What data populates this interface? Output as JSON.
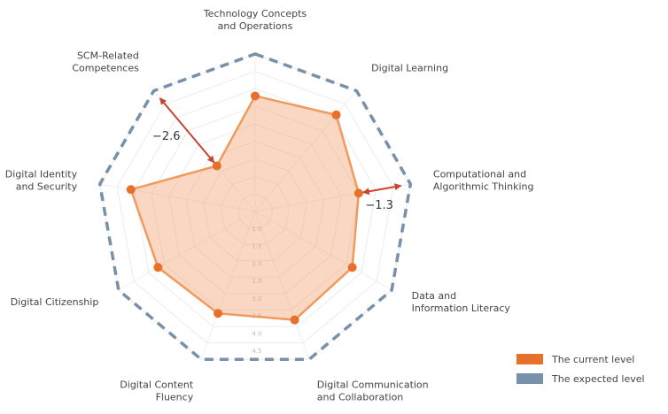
{
  "chart_data": {
    "type": "radar",
    "categories": [
      "Technology Concepts\nand Operations",
      "Digital Learning",
      "Computational and\nAlgorithmic Thinking",
      "Data and\nInformation Literacy",
      "Digital Communication\nand Collaboration",
      "Digital Content\nFluency",
      "Digital Citizenship",
      "Digital Identity\nand Security",
      "SCM-Related\nCompetences"
    ],
    "rlim": [
      0.5,
      5.0
    ],
    "ticks": [
      "1.0",
      "1.5",
      "2.0",
      "2.5",
      "3.0",
      "3.5",
      "4.0",
      "4.5"
    ],
    "grid": true,
    "legend_position": "bottom-right",
    "series": [
      {
        "name": "The current level",
        "color": "#e8702a",
        "values": [
          3.8,
          4.1,
          3.5,
          3.7,
          3.8,
          3.6,
          3.7,
          4.1,
          2.2
        ]
      },
      {
        "name": "The expected level",
        "color": "#7891ab",
        "values": [
          5.0,
          5.0,
          5.0,
          5.0,
          5.0,
          5.0,
          5.0,
          5.0,
          5.0
        ]
      }
    ],
    "annotations": [
      {
        "text": "−2.6",
        "category": "SCM-Related\nCompetences",
        "from": 4.8,
        "to": 2.2
      },
      {
        "text": "−1.3",
        "category": "Computational and\nAlgorithmic Thinking",
        "from": 4.8,
        "to": 3.5
      }
    ]
  }
}
